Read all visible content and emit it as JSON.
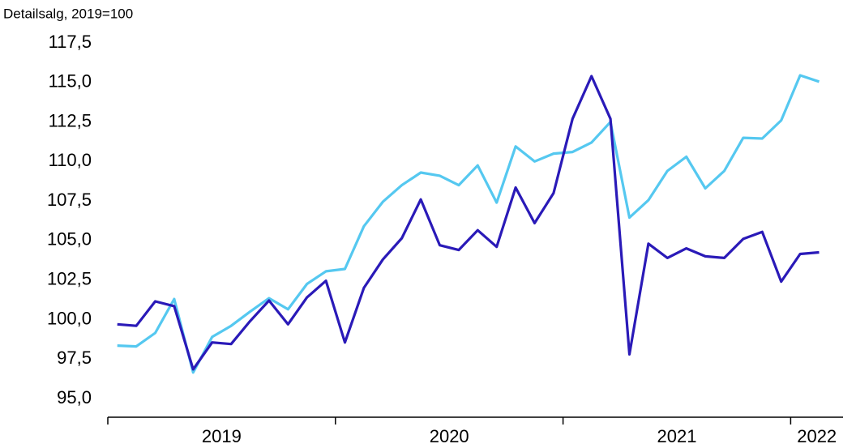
{
  "chart_data": {
    "type": "line",
    "y_axis_label": "Detailsalg, 2019=100",
    "categories": [
      null,
      null,
      null,
      null,
      null,
      null,
      null,
      null,
      null,
      null,
      null,
      null,
      null,
      null,
      null,
      null,
      null,
      null,
      null,
      null,
      null,
      null,
      null,
      null,
      null,
      null,
      null,
      null,
      null,
      null,
      null,
      null,
      null,
      null,
      null,
      null,
      null,
      null
    ],
    "year_labels": [
      "2019",
      "2020",
      "2021",
      "2022"
    ],
    "series": [
      {
        "color": "#2a1ab8",
        "values": [
          99.7,
          99.6,
          101.15,
          100.85,
          96.85,
          98.55,
          98.45,
          99.9,
          101.2,
          99.7,
          101.4,
          102.45,
          98.55,
          102.0,
          103.8,
          105.15,
          107.6,
          104.7,
          104.4,
          105.65,
          104.6,
          108.35,
          106.1,
          108.0,
          112.7,
          115.4,
          112.7,
          97.8,
          104.8,
          103.9,
          104.5,
          104.0,
          103.9,
          105.1,
          105.55,
          102.4,
          104.15,
          104.25
        ]
      },
      {
        "color": "#55c8f0",
        "values": [
          98.35,
          98.3,
          99.15,
          101.3,
          96.65,
          98.9,
          99.6,
          100.5,
          101.35,
          100.65,
          102.25,
          103.05,
          103.2,
          105.9,
          107.45,
          108.5,
          109.3,
          109.1,
          108.5,
          109.75,
          107.4,
          110.95,
          110.0,
          110.5,
          110.6,
          111.2,
          112.5,
          106.45,
          107.55,
          109.4,
          110.3,
          108.3,
          109.4,
          111.5,
          111.45,
          112.6,
          115.45,
          115.05
        ]
      }
    ],
    "ylim": [
      95,
      117.5
    ],
    "yticks": [
      {
        "value": 95,
        "label": "95,0"
      },
      {
        "value": 97.5,
        "label": "97,5"
      },
      {
        "value": 100,
        "label": "100,0"
      },
      {
        "value": 102.5,
        "label": "102,5"
      },
      {
        "value": 105,
        "label": "105,0"
      },
      {
        "value": 107.5,
        "label": "107,5"
      },
      {
        "value": 110,
        "label": "110,0"
      },
      {
        "value": 112.5,
        "label": "112,5"
      },
      {
        "value": 115,
        "label": "115,0"
      },
      {
        "value": 117.5,
        "label": "117,5"
      }
    ]
  }
}
